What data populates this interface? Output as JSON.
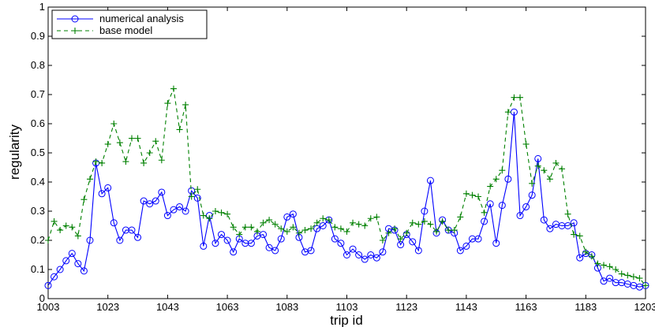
{
  "chart_data": {
    "type": "line",
    "xlabel": "trip id",
    "ylabel": "regularity",
    "xlim": [
      1003,
      1203
    ],
    "ylim": [
      0,
      1
    ],
    "x_ticks": [
      1003,
      1023,
      1043,
      1063,
      1083,
      1103,
      1123,
      1143,
      1163,
      1183,
      1203
    ],
    "y_ticks": [
      0,
      0.1,
      0.2,
      0.3,
      0.4,
      0.5,
      0.6,
      0.7,
      0.8,
      0.9,
      1
    ],
    "x_start": 1003,
    "x_step": 2,
    "grid": false,
    "legend": "top-left",
    "series": [
      {
        "name": "numerical analysis",
        "color": "#0000ff",
        "style": "solid",
        "marker": "circle",
        "values": [
          0.045,
          0.075,
          0.1,
          0.13,
          0.155,
          0.12,
          0.095,
          0.2,
          0.465,
          0.36,
          0.38,
          0.26,
          0.2,
          0.235,
          0.235,
          0.21,
          0.335,
          0.325,
          0.335,
          0.365,
          0.285,
          0.305,
          0.315,
          0.3,
          0.37,
          0.345,
          0.18,
          0.285,
          0.19,
          0.22,
          0.2,
          0.16,
          0.205,
          0.19,
          0.19,
          0.215,
          0.22,
          0.175,
          0.165,
          0.205,
          0.28,
          0.29,
          0.21,
          0.16,
          0.165,
          0.24,
          0.25,
          0.27,
          0.205,
          0.19,
          0.15,
          0.17,
          0.15,
          0.135,
          0.15,
          0.14,
          0.16,
          0.24,
          0.235,
          0.185,
          0.22,
          0.195,
          0.165,
          0.3,
          0.405,
          0.225,
          0.27,
          0.235,
          0.225,
          0.165,
          0.18,
          0.205,
          0.205,
          0.265,
          0.325,
          0.19,
          0.32,
          0.41,
          0.64,
          0.285,
          0.315,
          0.355,
          0.48,
          0.27,
          0.24,
          0.255,
          0.25,
          0.25,
          0.26,
          0.14,
          0.155,
          0.15,
          0.105,
          0.06,
          0.07,
          0.055,
          0.055,
          0.05,
          0.045,
          0.04,
          0.045
        ]
      },
      {
        "name": "base model",
        "color": "#008000",
        "style": "dashed",
        "marker": "plus",
        "values": [
          0.2,
          0.265,
          0.235,
          0.25,
          0.245,
          0.215,
          0.34,
          0.41,
          0.47,
          0.465,
          0.53,
          0.6,
          0.535,
          0.47,
          0.55,
          0.55,
          0.465,
          0.5,
          0.54,
          0.475,
          0.67,
          0.72,
          0.58,
          0.665,
          0.35,
          0.375,
          0.285,
          0.275,
          0.3,
          0.295,
          0.29,
          0.245,
          0.22,
          0.245,
          0.245,
          0.23,
          0.26,
          0.27,
          0.255,
          0.24,
          0.23,
          0.245,
          0.225,
          0.235,
          0.24,
          0.26,
          0.275,
          0.27,
          0.245,
          0.24,
          0.23,
          0.26,
          0.255,
          0.25,
          0.275,
          0.28,
          0.2,
          0.225,
          0.24,
          0.205,
          0.225,
          0.26,
          0.255,
          0.265,
          0.255,
          0.23,
          0.265,
          0.235,
          0.235,
          0.28,
          0.36,
          0.355,
          0.35,
          0.295,
          0.385,
          0.41,
          0.44,
          0.64,
          0.69,
          0.69,
          0.53,
          0.395,
          0.455,
          0.44,
          0.41,
          0.465,
          0.445,
          0.29,
          0.22,
          0.215,
          0.16,
          0.145,
          0.12,
          0.115,
          0.11,
          0.1,
          0.085,
          0.08,
          0.075,
          0.07,
          0.045
        ]
      }
    ]
  }
}
